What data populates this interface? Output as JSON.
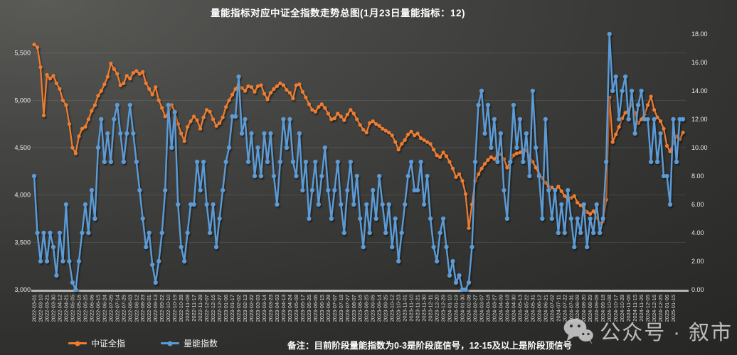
{
  "header": {
    "title": "量能指标对应中证全指数走势总图(1月23日量能指标：12)"
  },
  "footer": {
    "note": "备注：目前阶段量能指数为0-3是阶段底信号，12-15及以上是阶段顶信号",
    "watermark": "公众号 · 叙市",
    "wechat_icon": "wechat-logo"
  },
  "colors": {
    "csi_orange": "#ED7D31",
    "volume_blue": "#5B9BD5",
    "axis_text": "#e8e8e8",
    "x_axis_bar": "#b3b3b3",
    "gridline": "rgba(255,255,255,0.10)"
  },
  "chart_data": {
    "type": "line",
    "title": "量能指标对应中证全指数走势总图(1月23日量能指标：12)",
    "legend_position": "bottom",
    "grid": "horizontal-faint",
    "label_every": 2,
    "x_labels": [
      "2022-03-01",
      "2022-03-10",
      "2022-03-21",
      "2022-03-30",
      "2022-04-12",
      "2022-04-21",
      "2022-05-05",
      "2022-05-16",
      "2022-05-25",
      "2022-06-06",
      "2022-06-15",
      "2022-06-24",
      "2022-07-05",
      "2022-07-14",
      "2022-07-25",
      "2022-08-03",
      "2022-08-12",
      "2022-08-23",
      "2022-09-01",
      "2022-09-13",
      "2022-09-22",
      "2022-10-10",
      "2022-10-19",
      "2022-10-28",
      "2022-11-08",
      "2022-11-17",
      "2022-11-28",
      "2022-12-07",
      "2022-12-16",
      "2022-12-27",
      "2023-01-06",
      "2023-01-17",
      "2023-02-02",
      "2023-02-13",
      "2023-02-22",
      "2023-03-03",
      "2023-03-14",
      "2023-03-23",
      "2023-04-03",
      "2023-04-13",
      "2023-04-24",
      "2023-05-08",
      "2023-05-17",
      "2023-05-26",
      "2023-06-06",
      "2023-06-15",
      "2023-06-28",
      "2023-07-07",
      "2023-07-18",
      "2023-07-27",
      "2023-08-07",
      "2023-08-16",
      "2023-08-25",
      "2023-09-05",
      "2023-09-14",
      "2023-09-25",
      "2023-10-12",
      "2023-10-23",
      "2023-11-01",
      "2023-11-10",
      "2023-11-21",
      "2023-11-30",
      "2023-12-11",
      "2023-12-20",
      "2023-12-29",
      "2024-01-10",
      "2024-01-19",
      "2024-01-30",
      "2024-02-08",
      "2024-02-27",
      "2024-03-07",
      "2024-03-18",
      "2024-03-27",
      "2024-04-09",
      "2024-04-18",
      "2024-04-30",
      "2024-05-13",
      "2024-05-22",
      "2024-05-31",
      "2024-06-12",
      "2024-06-21",
      "2024-07-02",
      "2024-07-11",
      "2024-07-22",
      "2024-07-31",
      "2024-08-09",
      "2024-08-20",
      "2024-08-29",
      "2024-09-09",
      "2024-09-18",
      "2024-10-08",
      "2024-10-17",
      "2024-10-28",
      "2024-11-06",
      "2024-11-15",
      "2024-11-26",
      "2024-12-05",
      "2024-12-16",
      "2024-12-25",
      "2025-01-06",
      "2025-01-15"
    ],
    "left_axis": {
      "min": 3000,
      "max": 5700,
      "ticks": [
        {
          "v": 3000,
          "label": "3,000",
          "grid": false
        },
        {
          "v": 3500,
          "label": "3,500",
          "grid": true
        },
        {
          "v": 4000,
          "label": "4,000",
          "grid": true
        },
        {
          "v": 4500,
          "label": "4,500",
          "grid": true
        },
        {
          "v": 5000,
          "label": "5,000",
          "grid": true
        },
        {
          "v": 5500,
          "label": "5,500",
          "grid": true
        }
      ]
    },
    "right_axis": {
      "min": 0,
      "max": 18,
      "ticks": [
        {
          "v": 0,
          "label": "0.00"
        },
        {
          "v": 2,
          "label": "2.00"
        },
        {
          "v": 4,
          "label": "4.00"
        },
        {
          "v": 6,
          "label": "6.00"
        },
        {
          "v": 8,
          "label": "8.00"
        },
        {
          "v": 10,
          "label": "10.00"
        },
        {
          "v": 12,
          "label": "12.00"
        },
        {
          "v": 14,
          "label": "14.00"
        },
        {
          "v": 16,
          "label": "16.00"
        },
        {
          "v": 18,
          "label": "18.00"
        }
      ]
    },
    "series": [
      {
        "name": "中证全指",
        "axis": "left",
        "color": "#ED7D31",
        "values": [
          5590,
          5560,
          5350,
          4840,
          5270,
          5230,
          5260,
          5180,
          5120,
          5000,
          4950,
          4750,
          4500,
          4440,
          4620,
          4700,
          4720,
          4800,
          4890,
          4950,
          5050,
          5100,
          5170,
          5250,
          5390,
          5330,
          5280,
          5160,
          5180,
          5260,
          5230,
          5290,
          5310,
          5280,
          5300,
          5180,
          5120,
          5060,
          5140,
          5000,
          4920,
          4830,
          4860,
          4950,
          4880,
          4750,
          4650,
          4570,
          4720,
          4780,
          4830,
          4790,
          4700,
          4820,
          4900,
          4880,
          4800,
          4730,
          4760,
          4820,
          4930,
          5000,
          5060,
          5120,
          5170,
          5130,
          5100,
          5150,
          5140,
          5090,
          5150,
          5160,
          5070,
          5010,
          5080,
          5120,
          5150,
          5180,
          5160,
          5110,
          5080,
          5020,
          5160,
          5170,
          5090,
          5030,
          4960,
          4900,
          4880,
          4930,
          4960,
          4920,
          4860,
          4800,
          4810,
          4860,
          4830,
          4790,
          4850,
          4900,
          4860,
          4800,
          4740,
          4690,
          4660,
          4760,
          4780,
          4750,
          4730,
          4700,
          4680,
          4660,
          4630,
          4560,
          4480,
          4540,
          4580,
          4640,
          4670,
          4630,
          4650,
          4600,
          4580,
          4560,
          4540,
          4480,
          4420,
          4400,
          4450,
          4410,
          4350,
          4280,
          4190,
          4220,
          4150,
          4010,
          3650,
          3900,
          4150,
          4220,
          4280,
          4330,
          4370,
          4400,
          4380,
          4420,
          4430,
          4380,
          4290,
          4350,
          4420,
          4440,
          4450,
          4480,
          4470,
          4410,
          4350,
          4290,
          4220,
          4180,
          4130,
          4090,
          4080,
          4050,
          4090,
          4040,
          3990,
          3950,
          3970,
          3990,
          3920,
          3890,
          3870,
          3820,
          3800,
          3830,
          3760,
          3700,
          3720,
          3950,
          5030,
          4560,
          4640,
          4720,
          4810,
          4870,
          4900,
          4950,
          4870,
          4760,
          4800,
          4850,
          4950,
          5040,
          4900,
          4820,
          4780,
          4700,
          4520,
          4460,
          4550,
          4620,
          4590,
          4660
        ]
      },
      {
        "name": "量能指数",
        "axis": "right",
        "color": "#5B9BD5",
        "values": [
          8,
          4,
          2,
          4,
          2,
          4,
          3,
          1,
          4,
          2,
          6,
          2,
          0.5,
          0,
          2,
          4,
          6,
          4,
          7,
          5,
          10,
          12,
          9,
          11,
          9,
          12,
          13,
          11,
          9,
          11,
          13,
          11,
          9,
          7,
          5,
          3,
          4,
          1.75,
          0.5,
          2,
          4,
          7,
          13,
          10,
          12.5,
          6,
          3,
          2,
          4,
          6,
          6,
          9,
          7,
          9,
          6,
          4,
          6,
          3,
          5,
          7,
          9,
          10,
          12.2,
          12.2,
          15,
          11,
          12,
          9,
          11,
          8,
          10,
          8,
          11,
          9,
          11,
          8,
          6,
          9,
          12,
          10,
          12,
          9,
          8,
          11,
          7,
          9,
          5,
          7,
          9,
          6,
          8,
          10,
          7,
          5,
          7,
          9,
          6,
          4,
          7,
          9,
          6,
          8,
          5,
          3,
          6,
          4,
          7,
          5,
          8,
          6,
          4,
          6,
          3,
          5,
          2,
          4,
          6,
          8,
          9,
          7,
          7,
          9,
          6,
          8,
          5,
          3,
          2,
          4,
          5,
          3,
          1,
          2,
          0.5,
          1,
          0,
          0,
          0.5,
          3,
          9,
          13,
          14,
          11,
          13,
          10,
          12,
          9,
          11,
          7,
          5,
          9,
          13,
          10,
          12,
          9,
          11,
          8,
          14,
          10,
          8,
          5,
          12,
          7,
          5,
          7,
          4,
          6,
          4,
          7,
          5,
          3,
          5,
          4,
          6,
          3,
          5,
          4,
          6,
          4,
          5,
          9,
          18,
          14,
          15,
          12,
          14,
          15,
          12,
          14,
          11,
          13,
          14,
          12,
          12,
          9,
          12,
          9,
          11,
          8,
          8,
          6,
          12,
          9,
          12,
          12
        ]
      }
    ]
  }
}
